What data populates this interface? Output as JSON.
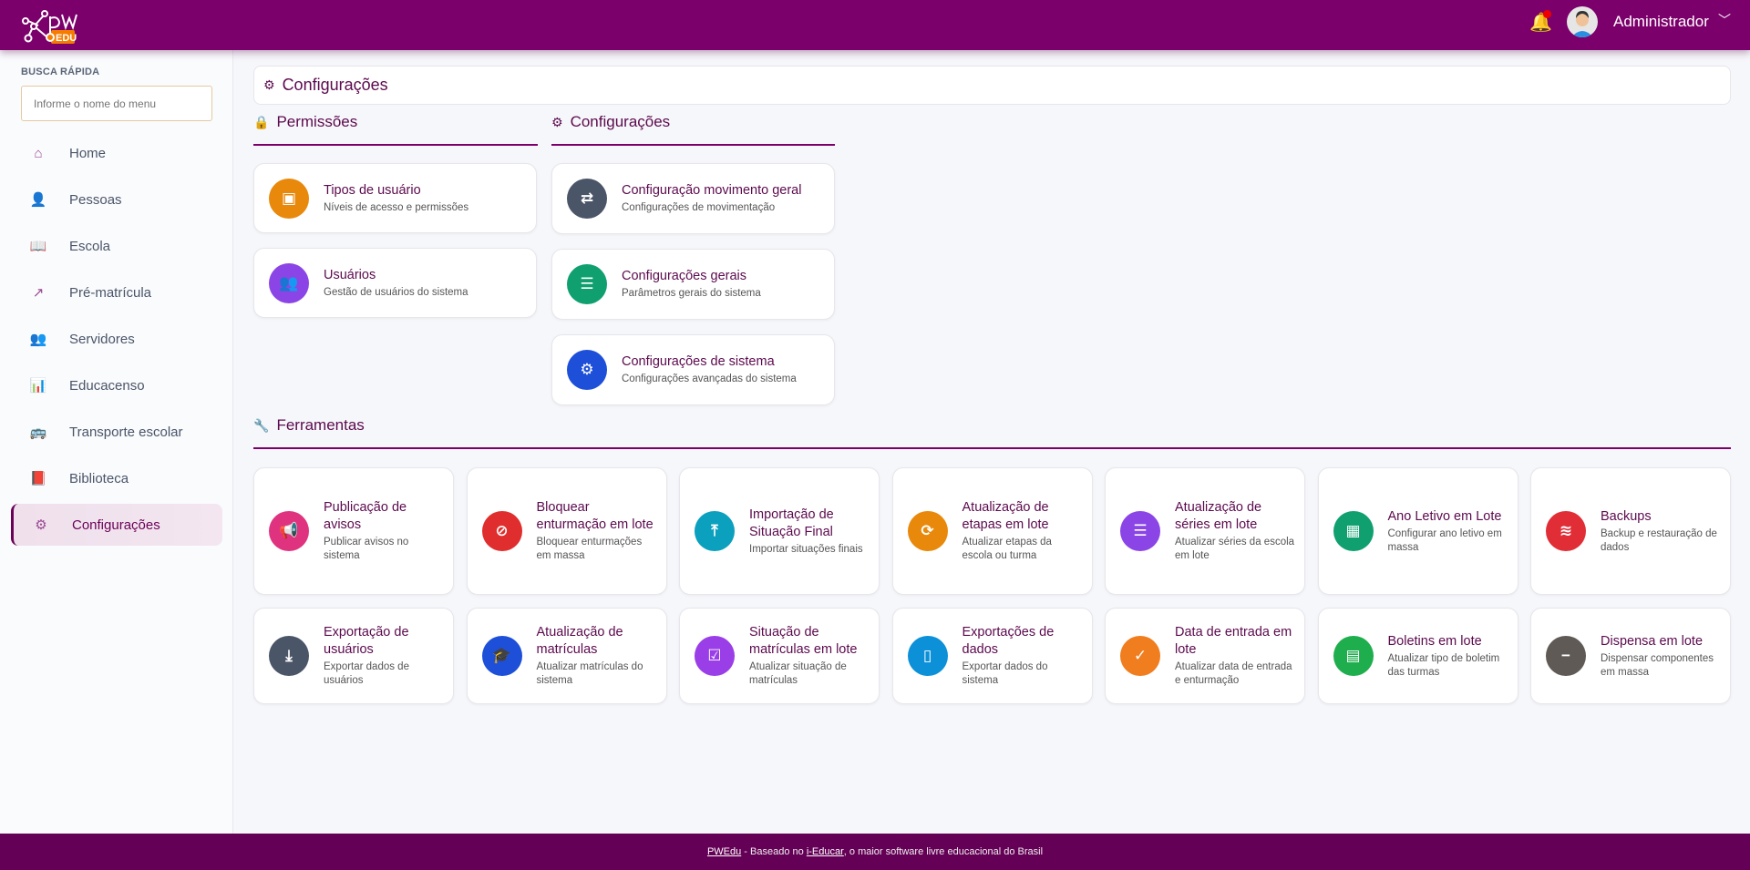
{
  "header": {
    "logo_text": "pw EDU",
    "user_name": "Administrador",
    "has_notification": true
  },
  "sidebar": {
    "quick_search_label": "BUSCA RÁPIDA",
    "quick_search_placeholder": "Informe o nome do menu",
    "items": [
      {
        "label": "Home",
        "icon": "home-icon"
      },
      {
        "label": "Pessoas",
        "icon": "user-icon"
      },
      {
        "label": "Escola",
        "icon": "book-open-icon"
      },
      {
        "label": "Pré-matrícula",
        "icon": "share-icon"
      },
      {
        "label": "Servidores",
        "icon": "users-icon"
      },
      {
        "label": "Educacenso",
        "icon": "bar-chart-icon"
      },
      {
        "label": "Transporte escolar",
        "icon": "bus-icon"
      },
      {
        "label": "Biblioteca",
        "icon": "book-icon"
      },
      {
        "label": "Configurações",
        "icon": "gear-icon",
        "active": true
      }
    ]
  },
  "main": {
    "title": "Configurações",
    "permissions": {
      "heading": "Permissões",
      "cards": [
        {
          "title": "Tipos de usuário",
          "subtitle": "Níveis de acesso e permissões",
          "color": "#e8890c"
        },
        {
          "title": "Usuários",
          "subtitle": "Gestão de usuários do sistema",
          "color": "#8b45e6"
        }
      ]
    },
    "settings": {
      "heading": "Configurações",
      "cards": [
        {
          "title": "Configuração movimento geral",
          "subtitle": "Configurações de movimentação",
          "color": "#4b5568"
        },
        {
          "title": "Configurações gerais",
          "subtitle": "Parâmetros gerais do sistema",
          "color": "#10a070"
        },
        {
          "title": "Configurações de sistema",
          "subtitle": "Configurações avançadas do sistema",
          "color": "#1d4fd8"
        }
      ]
    },
    "tools": {
      "heading": "Ferramentas",
      "cards": [
        {
          "title": "Publicação de avisos",
          "subtitle": "Publicar avisos no sistema",
          "color": "#e0337f",
          "icon": "megaphone-icon",
          "glyph": "📢"
        },
        {
          "title": "Bloquear enturmação em lote",
          "subtitle": "Bloquear enturmações em massa",
          "color": "#e02d2d",
          "icon": "ban-icon",
          "glyph": "⊘"
        },
        {
          "title": "Importação de Situação Final",
          "subtitle": "Importar situações finais",
          "color": "#0aa0be",
          "icon": "upload-icon",
          "glyph": "⤒"
        },
        {
          "title": "Atualização de etapas em lote",
          "subtitle": "Atualizar etapas da escola ou turma",
          "color": "#e8890c",
          "icon": "refresh-icon",
          "glyph": "⟳"
        },
        {
          "title": "Atualização de séries em lote",
          "subtitle": "Atualizar séries da escola em lote",
          "color": "#8b45e6",
          "icon": "list-ol-icon",
          "glyph": "☰"
        },
        {
          "title": "Ano Letivo em Lote",
          "subtitle": "Configurar ano letivo em massa",
          "color": "#10a070",
          "icon": "calendar-icon",
          "glyph": "▦"
        },
        {
          "title": "Backups",
          "subtitle": "Backup e restauração de dados",
          "color": "#e02d36",
          "icon": "database-icon",
          "glyph": "≋"
        },
        {
          "title": "Exportação de usuários",
          "subtitle": "Exportar dados de usuários",
          "color": "#4b5568",
          "icon": "download-icon",
          "glyph": "⤓"
        },
        {
          "title": "Atualização de matrículas",
          "subtitle": "Atualizar matrículas do sistema",
          "color": "#1d4fd8",
          "icon": "graduation-cap-icon",
          "glyph": "🎓"
        },
        {
          "title": "Situação de matrículas em lote",
          "subtitle": "Atualizar situação de matrículas",
          "color": "#9a3ee8",
          "icon": "check-square-icon",
          "glyph": "☑"
        },
        {
          "title": "Exportações de dados",
          "subtitle": "Exportar dados do sistema",
          "color": "#0c90d8",
          "icon": "file-zip-icon",
          "glyph": "▯"
        },
        {
          "title": "Data de entrada em lote",
          "subtitle": "Atualizar data de entrada e enturmação",
          "color": "#f07d1e",
          "icon": "calendar-check-icon",
          "glyph": "✓"
        },
        {
          "title": "Boletins em lote",
          "subtitle": "Atualizar tipo de boletim das turmas",
          "color": "#1fae4e",
          "icon": "file-text-icon",
          "glyph": "▤"
        },
        {
          "title": "Dispensa em lote",
          "subtitle": "Dispensar componentes em massa",
          "color": "#5f5a55",
          "icon": "minus-circle-icon",
          "glyph": "−"
        }
      ]
    }
  },
  "footer": {
    "brand": "PWEdu",
    "text1": " - Baseado no ",
    "link": "i-Educar",
    "text2": ", o maior software livre educacional do Brasil"
  }
}
